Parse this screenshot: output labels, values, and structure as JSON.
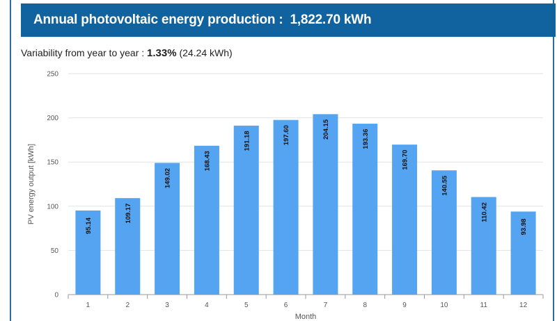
{
  "banner": {
    "title": "Annual photovoltaic energy production :",
    "value": "1,822.70 kWh"
  },
  "variability": {
    "label": "Variability from year to year :",
    "percent": "1.33%",
    "absolute": "(24.24 kWh)"
  },
  "chart_data": {
    "type": "bar",
    "categories": [
      "1",
      "2",
      "3",
      "4",
      "5",
      "6",
      "7",
      "8",
      "9",
      "10",
      "11",
      "12"
    ],
    "values": [
      95.14,
      109.17,
      149.02,
      168.43,
      191.18,
      197.6,
      204.15,
      193.36,
      169.7,
      140.55,
      110.42,
      93.98
    ],
    "value_labels": [
      "95.14",
      "109.17",
      "149.02",
      "168.43",
      "191.18",
      "197.60",
      "204.15",
      "193.36",
      "169.70",
      "140.55",
      "110.42",
      "93.98"
    ],
    "ylim": [
      0,
      250
    ],
    "yticks": [
      0,
      50,
      100,
      150,
      200,
      250
    ],
    "xlabel": "Month",
    "ylabel": "PV energy output [kWh]",
    "bar_color": "#55a4f2",
    "grid": true
  }
}
